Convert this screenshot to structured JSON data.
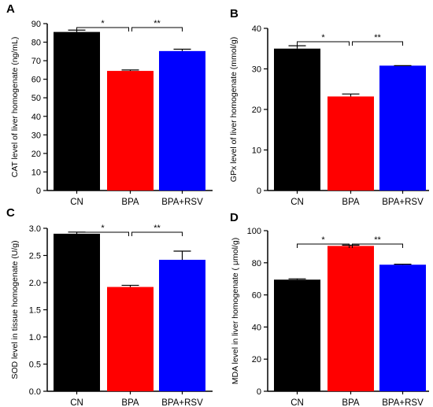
{
  "chart_data": [
    {
      "panel_label": "A",
      "type": "bar",
      "ylabel": "CAT level of liver homogenate (ng/mL)",
      "ylim": [
        0,
        90
      ],
      "yticks": [
        "0",
        "10",
        "20",
        "30",
        "40",
        "50",
        "60",
        "70",
        "80",
        "90"
      ],
      "categories": [
        "CN",
        "BPA",
        "BPA+RSV"
      ],
      "values": [
        85.5,
        64.5,
        75.2
      ],
      "errors": [
        1.0,
        0.5,
        1.0
      ],
      "bar_colors": [
        "#000000",
        "#ff0000",
        "#0000ff"
      ],
      "significance": [
        {
          "from": 0,
          "to": 1,
          "label": "*"
        },
        {
          "from": 1,
          "to": 2,
          "label": "**"
        }
      ]
    },
    {
      "panel_label": "B",
      "type": "bar",
      "ylabel": "GPx level of liver homogenate (mmol/g)",
      "ylim": [
        0,
        40
      ],
      "yticks": [
        "0",
        "10",
        "20",
        "30",
        "40"
      ],
      "categories": [
        "CN",
        "BPA",
        "BPA+RSV"
      ],
      "values": [
        35.0,
        23.2,
        30.8
      ],
      "errors": [
        0.7,
        0.6,
        0.0
      ],
      "bar_colors": [
        "#000000",
        "#ff0000",
        "#0000ff"
      ],
      "significance": [
        {
          "from": 0,
          "to": 1,
          "label": "*"
        },
        {
          "from": 1,
          "to": 2,
          "label": "**"
        }
      ]
    },
    {
      "panel_label": "C",
      "type": "bar",
      "ylabel": "SOD level in tissue homogenate (U/g)",
      "ylim": [
        0,
        3.0
      ],
      "yticks": [
        "0.0",
        "0.5",
        "1.0",
        "1.5",
        "2.0",
        "2.5",
        "3.0"
      ],
      "categories": [
        "CN",
        "BPA",
        "BPA+RSV"
      ],
      "values": [
        2.9,
        1.92,
        2.42
      ],
      "errors": [
        0.03,
        0.03,
        0.16
      ],
      "bar_colors": [
        "#000000",
        "#ff0000",
        "#0000ff"
      ],
      "significance": [
        {
          "from": 0,
          "to": 1,
          "label": "*"
        },
        {
          "from": 1,
          "to": 2,
          "label": "**"
        }
      ]
    },
    {
      "panel_label": "D",
      "type": "bar",
      "ylabel": "MDA level in liver homogenate ( μmol/g)",
      "ylim": [
        0,
        100
      ],
      "yticks": [
        "0",
        "20",
        "40",
        "60",
        "80",
        "100"
      ],
      "categories": [
        "CN",
        "BPA",
        "BPA+RSV"
      ],
      "values": [
        69.5,
        90.5,
        78.8
      ],
      "errors": [
        0.5,
        0.5,
        0.3
      ],
      "bar_colors": [
        "#000000",
        "#ff0000",
        "#0000ff"
      ],
      "significance": [
        {
          "from": 0,
          "to": 1,
          "label": "*"
        },
        {
          "from": 1,
          "to": 2,
          "label": "**"
        }
      ]
    }
  ]
}
